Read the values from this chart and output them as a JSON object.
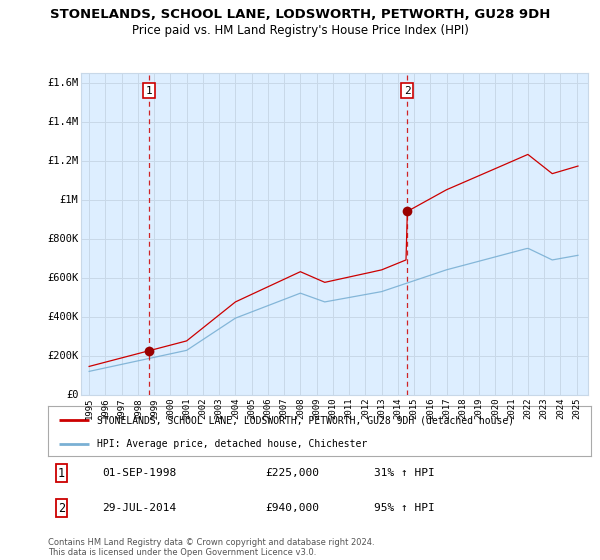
{
  "title": "STONELANDS, SCHOOL LANE, LODSWORTH, PETWORTH, GU28 9DH",
  "subtitle": "Price paid vs. HM Land Registry's House Price Index (HPI)",
  "xlim": [
    1994.5,
    2025.7
  ],
  "ylim": [
    0,
    1650000
  ],
  "yticks": [
    0,
    200000,
    400000,
    600000,
    800000,
    1000000,
    1200000,
    1400000,
    1600000
  ],
  "ytick_labels": [
    "£0",
    "£200K",
    "£400K",
    "£600K",
    "£800K",
    "£1M",
    "£1.2M",
    "£1.4M",
    "£1.6M"
  ],
  "xticks": [
    1995,
    1996,
    1997,
    1998,
    1999,
    2000,
    2001,
    2002,
    2003,
    2004,
    2005,
    2006,
    2007,
    2008,
    2009,
    2010,
    2011,
    2012,
    2013,
    2014,
    2015,
    2016,
    2017,
    2018,
    2019,
    2020,
    2021,
    2022,
    2023,
    2024,
    2025
  ],
  "sale1_x": 1998.67,
  "sale1_y": 225000,
  "sale1_label": "1",
  "sale1_date": "01-SEP-1998",
  "sale1_price": "£225,000",
  "sale1_hpi": "31% ↑ HPI",
  "sale2_x": 2014.58,
  "sale2_y": 940000,
  "sale2_label": "2",
  "sale2_date": "29-JUL-2014",
  "sale2_price": "£940,000",
  "sale2_hpi": "95% ↑ HPI",
  "line1_color": "#cc0000",
  "line2_color": "#7ab0d4",
  "vline_color": "#cc0000",
  "marker_color": "#990000",
  "bg_color": "#ffffff",
  "plot_bg_color": "#ddeeff",
  "grid_color": "#c8d8e8",
  "legend_label1": "STONELANDS, SCHOOL LANE, LODSWORTH, PETWORTH, GU28 9DH (detached house)",
  "legend_label2": "HPI: Average price, detached house, Chichester",
  "footer": "Contains HM Land Registry data © Crown copyright and database right 2024.\nThis data is licensed under the Open Government Licence v3.0."
}
